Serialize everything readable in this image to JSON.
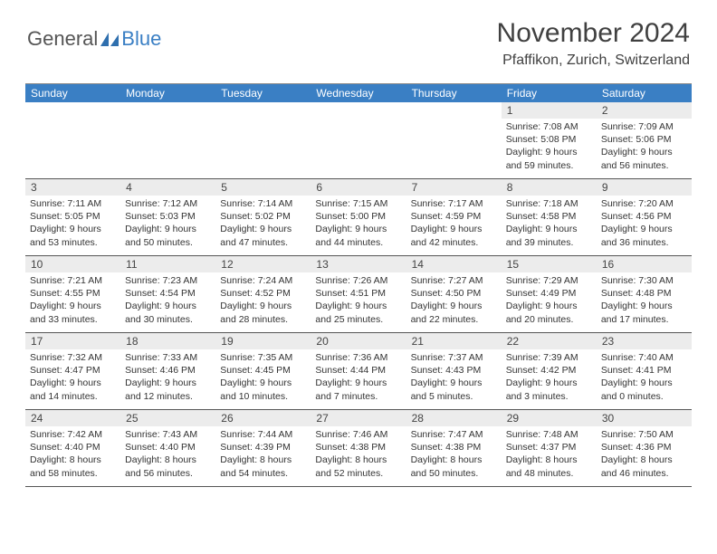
{
  "logo": {
    "general": "General",
    "blue": "Blue"
  },
  "header": {
    "month_title": "November 2024",
    "location": "Pfaffikon, Zurich, Switzerland"
  },
  "colors": {
    "header_bg": "#3a7fc4",
    "daynum_bg": "#ececec",
    "border": "#555555",
    "text": "#333333"
  },
  "weekdays": [
    "Sunday",
    "Monday",
    "Tuesday",
    "Wednesday",
    "Thursday",
    "Friday",
    "Saturday"
  ],
  "weeks": [
    [
      null,
      null,
      null,
      null,
      null,
      {
        "n": "1",
        "sr": "Sunrise: 7:08 AM",
        "ss": "Sunset: 5:08 PM",
        "d1": "Daylight: 9 hours",
        "d2": "and 59 minutes."
      },
      {
        "n": "2",
        "sr": "Sunrise: 7:09 AM",
        "ss": "Sunset: 5:06 PM",
        "d1": "Daylight: 9 hours",
        "d2": "and 56 minutes."
      }
    ],
    [
      {
        "n": "3",
        "sr": "Sunrise: 7:11 AM",
        "ss": "Sunset: 5:05 PM",
        "d1": "Daylight: 9 hours",
        "d2": "and 53 minutes."
      },
      {
        "n": "4",
        "sr": "Sunrise: 7:12 AM",
        "ss": "Sunset: 5:03 PM",
        "d1": "Daylight: 9 hours",
        "d2": "and 50 minutes."
      },
      {
        "n": "5",
        "sr": "Sunrise: 7:14 AM",
        "ss": "Sunset: 5:02 PM",
        "d1": "Daylight: 9 hours",
        "d2": "and 47 minutes."
      },
      {
        "n": "6",
        "sr": "Sunrise: 7:15 AM",
        "ss": "Sunset: 5:00 PM",
        "d1": "Daylight: 9 hours",
        "d2": "and 44 minutes."
      },
      {
        "n": "7",
        "sr": "Sunrise: 7:17 AM",
        "ss": "Sunset: 4:59 PM",
        "d1": "Daylight: 9 hours",
        "d2": "and 42 minutes."
      },
      {
        "n": "8",
        "sr": "Sunrise: 7:18 AM",
        "ss": "Sunset: 4:58 PM",
        "d1": "Daylight: 9 hours",
        "d2": "and 39 minutes."
      },
      {
        "n": "9",
        "sr": "Sunrise: 7:20 AM",
        "ss": "Sunset: 4:56 PM",
        "d1": "Daylight: 9 hours",
        "d2": "and 36 minutes."
      }
    ],
    [
      {
        "n": "10",
        "sr": "Sunrise: 7:21 AM",
        "ss": "Sunset: 4:55 PM",
        "d1": "Daylight: 9 hours",
        "d2": "and 33 minutes."
      },
      {
        "n": "11",
        "sr": "Sunrise: 7:23 AM",
        "ss": "Sunset: 4:54 PM",
        "d1": "Daylight: 9 hours",
        "d2": "and 30 minutes."
      },
      {
        "n": "12",
        "sr": "Sunrise: 7:24 AM",
        "ss": "Sunset: 4:52 PM",
        "d1": "Daylight: 9 hours",
        "d2": "and 28 minutes."
      },
      {
        "n": "13",
        "sr": "Sunrise: 7:26 AM",
        "ss": "Sunset: 4:51 PM",
        "d1": "Daylight: 9 hours",
        "d2": "and 25 minutes."
      },
      {
        "n": "14",
        "sr": "Sunrise: 7:27 AM",
        "ss": "Sunset: 4:50 PM",
        "d1": "Daylight: 9 hours",
        "d2": "and 22 minutes."
      },
      {
        "n": "15",
        "sr": "Sunrise: 7:29 AM",
        "ss": "Sunset: 4:49 PM",
        "d1": "Daylight: 9 hours",
        "d2": "and 20 minutes."
      },
      {
        "n": "16",
        "sr": "Sunrise: 7:30 AM",
        "ss": "Sunset: 4:48 PM",
        "d1": "Daylight: 9 hours",
        "d2": "and 17 minutes."
      }
    ],
    [
      {
        "n": "17",
        "sr": "Sunrise: 7:32 AM",
        "ss": "Sunset: 4:47 PM",
        "d1": "Daylight: 9 hours",
        "d2": "and 14 minutes."
      },
      {
        "n": "18",
        "sr": "Sunrise: 7:33 AM",
        "ss": "Sunset: 4:46 PM",
        "d1": "Daylight: 9 hours",
        "d2": "and 12 minutes."
      },
      {
        "n": "19",
        "sr": "Sunrise: 7:35 AM",
        "ss": "Sunset: 4:45 PM",
        "d1": "Daylight: 9 hours",
        "d2": "and 10 minutes."
      },
      {
        "n": "20",
        "sr": "Sunrise: 7:36 AM",
        "ss": "Sunset: 4:44 PM",
        "d1": "Daylight: 9 hours",
        "d2": "and 7 minutes."
      },
      {
        "n": "21",
        "sr": "Sunrise: 7:37 AM",
        "ss": "Sunset: 4:43 PM",
        "d1": "Daylight: 9 hours",
        "d2": "and 5 minutes."
      },
      {
        "n": "22",
        "sr": "Sunrise: 7:39 AM",
        "ss": "Sunset: 4:42 PM",
        "d1": "Daylight: 9 hours",
        "d2": "and 3 minutes."
      },
      {
        "n": "23",
        "sr": "Sunrise: 7:40 AM",
        "ss": "Sunset: 4:41 PM",
        "d1": "Daylight: 9 hours",
        "d2": "and 0 minutes."
      }
    ],
    [
      {
        "n": "24",
        "sr": "Sunrise: 7:42 AM",
        "ss": "Sunset: 4:40 PM",
        "d1": "Daylight: 8 hours",
        "d2": "and 58 minutes."
      },
      {
        "n": "25",
        "sr": "Sunrise: 7:43 AM",
        "ss": "Sunset: 4:40 PM",
        "d1": "Daylight: 8 hours",
        "d2": "and 56 minutes."
      },
      {
        "n": "26",
        "sr": "Sunrise: 7:44 AM",
        "ss": "Sunset: 4:39 PM",
        "d1": "Daylight: 8 hours",
        "d2": "and 54 minutes."
      },
      {
        "n": "27",
        "sr": "Sunrise: 7:46 AM",
        "ss": "Sunset: 4:38 PM",
        "d1": "Daylight: 8 hours",
        "d2": "and 52 minutes."
      },
      {
        "n": "28",
        "sr": "Sunrise: 7:47 AM",
        "ss": "Sunset: 4:38 PM",
        "d1": "Daylight: 8 hours",
        "d2": "and 50 minutes."
      },
      {
        "n": "29",
        "sr": "Sunrise: 7:48 AM",
        "ss": "Sunset: 4:37 PM",
        "d1": "Daylight: 8 hours",
        "d2": "and 48 minutes."
      },
      {
        "n": "30",
        "sr": "Sunrise: 7:50 AM",
        "ss": "Sunset: 4:36 PM",
        "d1": "Daylight: 8 hours",
        "d2": "and 46 minutes."
      }
    ]
  ]
}
